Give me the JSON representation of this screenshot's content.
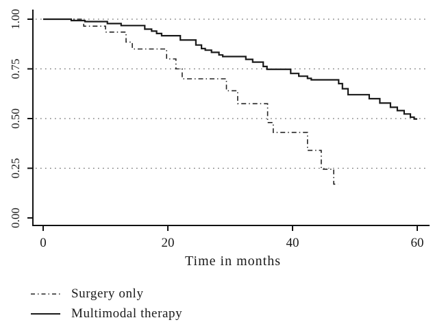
{
  "chart_data": {
    "type": "line",
    "subtype": "kaplan-meier-step",
    "title": "",
    "xlabel": "Time in months",
    "ylabel": "",
    "xlim": [
      0,
      60
    ],
    "ylim": [
      0,
      1
    ],
    "x_ticks": [
      {
        "value": 0,
        "label": "0"
      },
      {
        "value": 20,
        "label": "20"
      },
      {
        "value": 40,
        "label": "40"
      },
      {
        "value": 60,
        "label": "60"
      }
    ],
    "y_ticks": [
      {
        "value": 0,
        "label": "0.00"
      },
      {
        "value": 0.25,
        "label": "0.25"
      },
      {
        "value": 0.5,
        "label": "0.50"
      },
      {
        "value": 0.75,
        "label": "0.75"
      },
      {
        "value": 1,
        "label": "1.00"
      }
    ],
    "grid": {
      "horizontal_dotted_at": [
        0.25,
        0.5,
        0.75,
        1.0
      ]
    },
    "legend_position": "below-left",
    "colors": {
      "line": "#1a1a1a",
      "grid_dots": "#666666"
    },
    "series": [
      {
        "name": "Surgery only",
        "style": "dash-dot",
        "color": "#222222",
        "end_t": 47.3,
        "points": [
          [
            0,
            1.0
          ],
          [
            6.5,
            0.965
          ],
          [
            10.0,
            0.935
          ],
          [
            13.3,
            0.885
          ],
          [
            14.3,
            0.85
          ],
          [
            19.8,
            0.8
          ],
          [
            21.3,
            0.75
          ],
          [
            22.3,
            0.7
          ],
          [
            29.4,
            0.64
          ],
          [
            31.2,
            0.575
          ],
          [
            36.0,
            0.48
          ],
          [
            36.9,
            0.43
          ],
          [
            42.4,
            0.34
          ],
          [
            44.6,
            0.245
          ],
          [
            46.6,
            0.17
          ]
        ]
      },
      {
        "name": "Multimodal therapy",
        "style": "solid",
        "color": "#1a1a1a",
        "end_t": 60.0,
        "points": [
          [
            0,
            1.0
          ],
          [
            4.5,
            0.993
          ],
          [
            6.7,
            0.988
          ],
          [
            10.3,
            0.978
          ],
          [
            12.5,
            0.968
          ],
          [
            16.3,
            0.95
          ],
          [
            17.4,
            0.94
          ],
          [
            18.2,
            0.928
          ],
          [
            19.0,
            0.917
          ],
          [
            22.0,
            0.895
          ],
          [
            24.5,
            0.87
          ],
          [
            25.4,
            0.852
          ],
          [
            26.0,
            0.844
          ],
          [
            27.0,
            0.833
          ],
          [
            28.2,
            0.82
          ],
          [
            28.8,
            0.812
          ],
          [
            32.5,
            0.798
          ],
          [
            33.6,
            0.784
          ],
          [
            35.3,
            0.762
          ],
          [
            35.9,
            0.748
          ],
          [
            39.7,
            0.727
          ],
          [
            41.0,
            0.713
          ],
          [
            42.4,
            0.702
          ],
          [
            43.0,
            0.695
          ],
          [
            47.4,
            0.676
          ],
          [
            48.0,
            0.65
          ],
          [
            48.9,
            0.62
          ],
          [
            52.3,
            0.6
          ],
          [
            54.0,
            0.578
          ],
          [
            55.7,
            0.557
          ],
          [
            56.8,
            0.54
          ],
          [
            57.9,
            0.523
          ],
          [
            58.9,
            0.507
          ],
          [
            59.5,
            0.498
          ]
        ]
      }
    ]
  },
  "legend": {
    "items": [
      {
        "label": "Surgery only",
        "sample": "dash-dot-line"
      },
      {
        "label": "Multimodal therapy",
        "sample": "solid-line"
      }
    ]
  }
}
